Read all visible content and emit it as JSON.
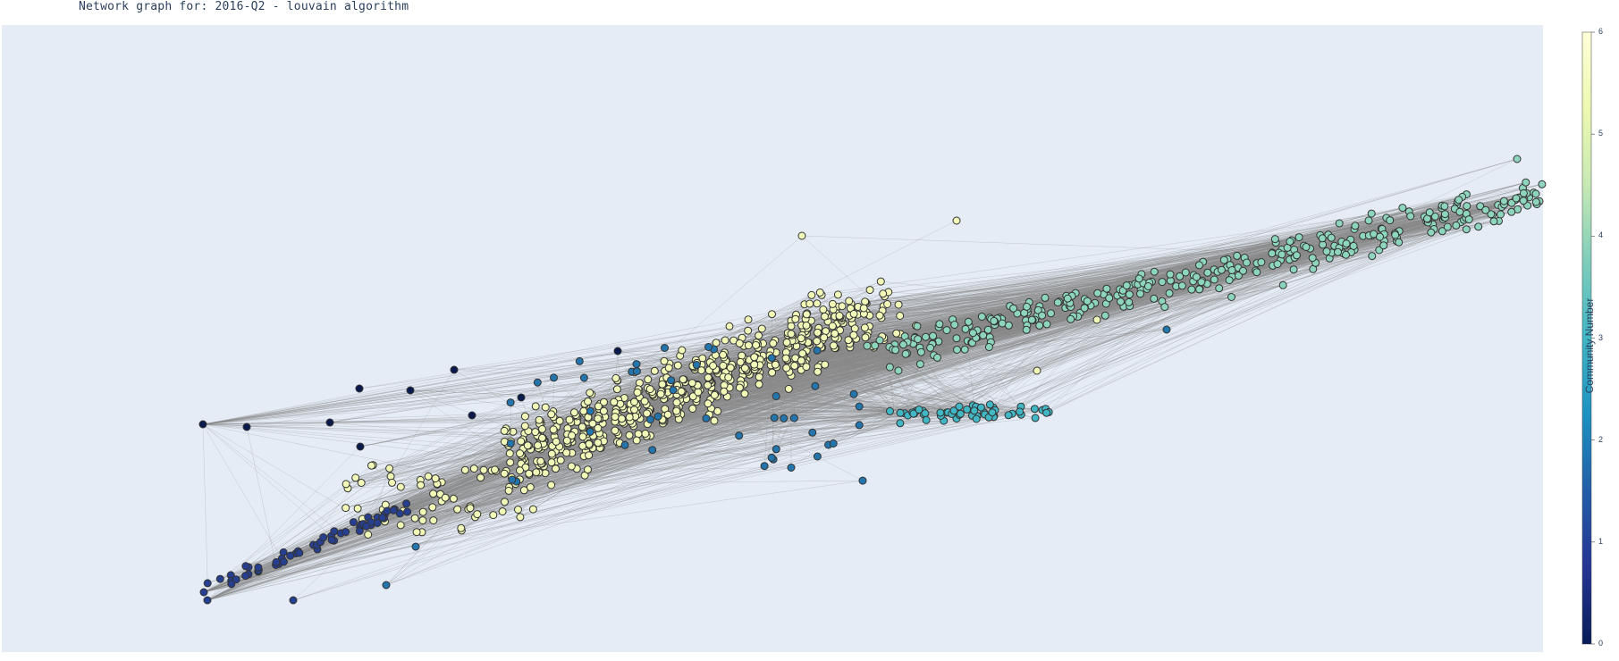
{
  "chart_data": {
    "type": "scatter",
    "title": "Network graph for: 2016-Q2 - louvain algorithm",
    "colorbar": {
      "title": "Community Number",
      "range": [
        0,
        6
      ],
      "ticks": [
        "0",
        "1",
        "2",
        "3",
        "4",
        "5",
        "6"
      ],
      "colorscale": [
        "#081d58",
        "#253494",
        "#225ea8",
        "#1d91c0",
        "#41b6c4",
        "#7fcdbb",
        "#c7e9b4",
        "#edf8b1",
        "#ffffd9"
      ]
    },
    "colors": {
      "plot_background": "#e5ecf6",
      "edge": "#888888",
      "node_outline": "#333333"
    },
    "communities": [
      {
        "community": 0,
        "node_color": "#0b1a4d"
      },
      {
        "community": 1,
        "node_color": "#273f8f"
      },
      {
        "community": 2,
        "node_color": "#2475ac"
      },
      {
        "community": 3,
        "node_color": "#41b6c4"
      },
      {
        "community": 4,
        "node_color": "#8ed5be"
      },
      {
        "community": 5,
        "node_color": "#f1f8b8"
      }
    ]
  }
}
